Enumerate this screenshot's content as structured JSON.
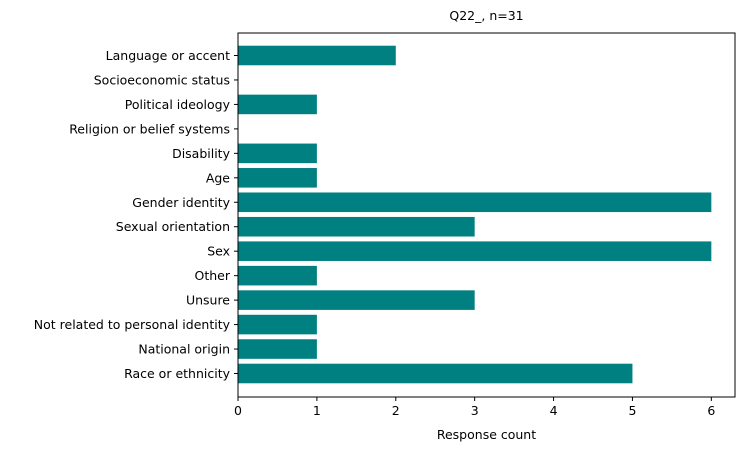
{
  "chart_data": {
    "type": "bar",
    "orientation": "horizontal",
    "title": "Q22_, n=31",
    "xlabel": "Response count",
    "ylabel": "",
    "categories": [
      "Language or accent",
      "Socioeconomic status",
      "Political ideology",
      "Religion or belief systems",
      "Disability",
      "Age",
      "Gender identity",
      "Sexual orientation",
      "Sex",
      "Other",
      "Unsure",
      "Not related to personal identity",
      "National origin",
      "Race or ethnicity"
    ],
    "values": [
      2,
      0,
      1,
      0,
      1,
      1,
      6,
      3,
      6,
      1,
      3,
      1,
      1,
      5
    ],
    "xlim": [
      0,
      6.3
    ],
    "xticks": [
      0,
      1,
      2,
      3,
      4,
      5,
      6
    ],
    "grid": false,
    "legend": "none",
    "bar_color": "#008080"
  }
}
